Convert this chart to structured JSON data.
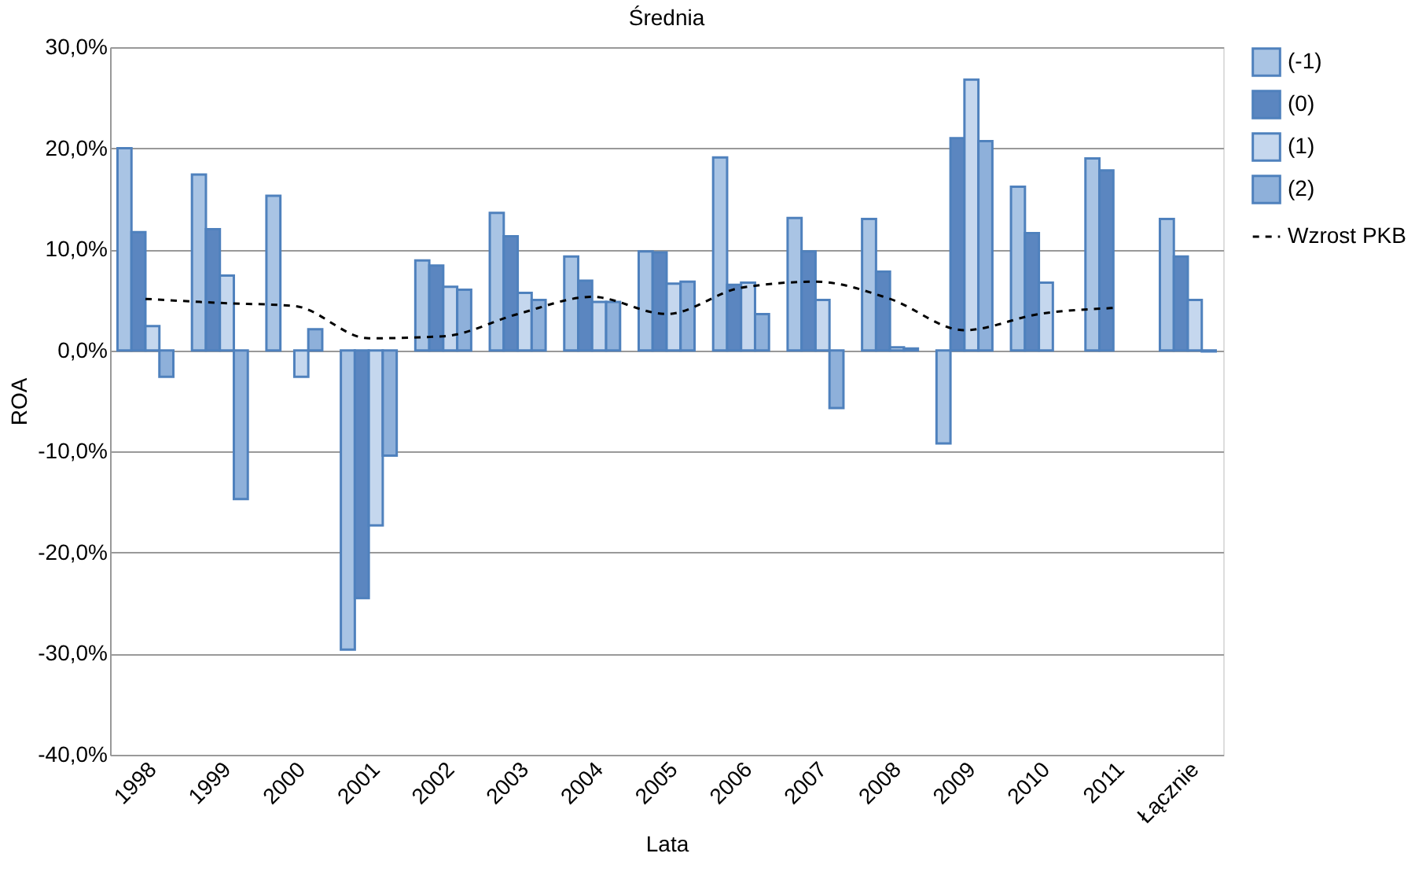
{
  "chart_data": {
    "type": "bar",
    "title": "Średnia",
    "xlabel": "Lata",
    "ylabel": "ROA",
    "categories": [
      "1998",
      "1999",
      "2000",
      "2001",
      "2002",
      "2003",
      "2004",
      "2005",
      "2006",
      "2007",
      "2008",
      "2009",
      "2010",
      "2011",
      "Łącznie"
    ],
    "series": [
      {
        "name": "(-1)",
        "color": "#a9c4e4",
        "values": [
          20.0,
          17.4,
          15.3,
          -29.6,
          8.9,
          13.6,
          9.3,
          9.8,
          19.1,
          13.1,
          13.0,
          -9.2,
          16.2,
          19.0,
          13.0
        ]
      },
      {
        "name": "(0)",
        "color": "#5b86c0",
        "values": [
          11.7,
          12.0,
          null,
          -24.5,
          8.4,
          11.3,
          6.9,
          9.7,
          6.5,
          9.8,
          7.8,
          21.0,
          11.6,
          17.8,
          9.3
        ]
      },
      {
        "name": "(1)",
        "color": "#c5d7ee",
        "values": [
          2.4,
          7.4,
          -2.6,
          -17.3,
          6.3,
          5.7,
          4.8,
          6.6,
          6.7,
          5.0,
          0.3,
          26.8,
          6.7,
          null,
          5.0
        ]
      },
      {
        "name": "(2)",
        "color": "#8eb0da",
        "values": [
          -2.6,
          -14.7,
          2.1,
          -10.4,
          6.0,
          5.0,
          4.8,
          6.8,
          3.6,
          -5.7,
          0.2,
          20.7,
          null,
          null,
          -0.1
        ]
      },
      {
        "name": "Wzrost PKB",
        "type": "line",
        "color": "#000000",
        "line_style": "dashed",
        "values": [
          5.1,
          4.7,
          4.4,
          1.2,
          1.4,
          3.6,
          5.3,
          3.6,
          6.2,
          6.8,
          5.1,
          2.0,
          3.6,
          4.2,
          null
        ]
      }
    ],
    "ylim": [
      -40,
      30
    ],
    "yticks": [
      {
        "value": -40,
        "label": "-40,0%"
      },
      {
        "value": -30,
        "label": "-30,0%"
      },
      {
        "value": -20,
        "label": "-20,0%"
      },
      {
        "value": -10,
        "label": "-10,0%"
      },
      {
        "value": 0,
        "label": "0,0%"
      },
      {
        "value": 10,
        "label": "10,0%"
      },
      {
        "value": 20,
        "label": "20,0%"
      },
      {
        "value": 30,
        "label": "30,0%"
      }
    ],
    "grid": "y",
    "legend": "right",
    "marker": "none"
  }
}
